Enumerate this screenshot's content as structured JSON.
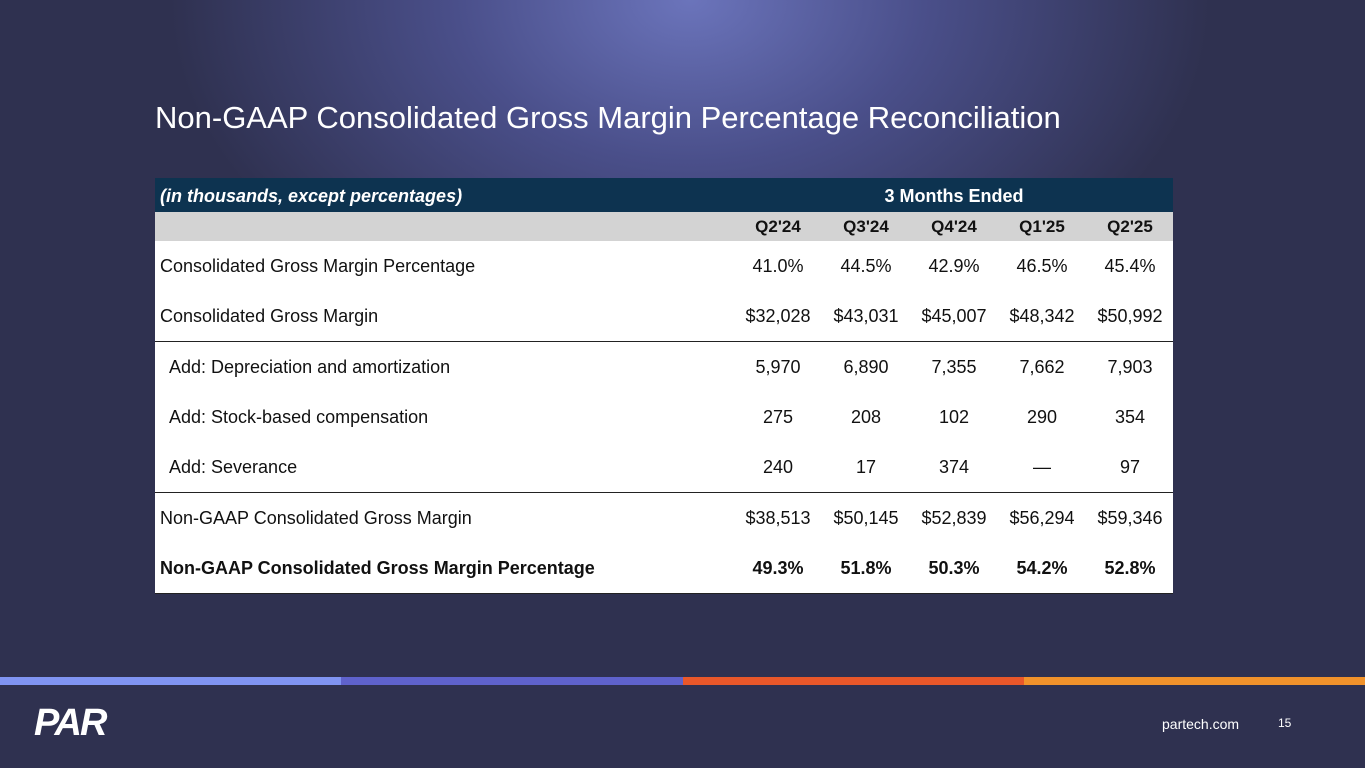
{
  "slide": {
    "title": "Non-GAAP Consolidated Gross Margin Percentage Reconciliation",
    "table": {
      "caption": "(in thousands, except percentages)",
      "period": "3 Months Ended",
      "columns": [
        "Q2'24",
        "Q3'24",
        "Q4'24",
        "Q1'25",
        "Q2'25"
      ],
      "rows": [
        {
          "label": "Consolidated Gross Margin Percentage",
          "cells": [
            "41.0%",
            "44.5%",
            "42.9%",
            "46.5%",
            "45.4%"
          ]
        },
        {
          "label": "Consolidated Gross Margin",
          "cells": [
            "$32,028",
            "$43,031",
            "$45,007",
            "$48,342",
            "$50,992"
          ]
        },
        {
          "label": "Add: Depreciation and amortization",
          "cells": [
            "5,970",
            "6,890",
            "7,355",
            "7,662",
            "7,903"
          ]
        },
        {
          "label": "Add: Stock-based compensation",
          "cells": [
            "275",
            "208",
            "102",
            "290",
            "354"
          ]
        },
        {
          "label": "Add: Severance",
          "cells": [
            "240",
            "17",
            "374",
            "—",
            "97"
          ]
        },
        {
          "label": "Non-GAAP Consolidated Gross Margin",
          "cells": [
            "$38,513",
            "$50,145",
            "$52,839",
            "$56,294",
            "$59,346"
          ]
        },
        {
          "label": "Non-GAAP Consolidated Gross Margin Percentage",
          "cells": [
            "49.3%",
            "51.8%",
            "50.3%",
            "54.2%",
            "52.8%"
          ]
        }
      ]
    },
    "footer": {
      "logo": "PAR",
      "site": "partech.com",
      "page": "15"
    }
  }
}
